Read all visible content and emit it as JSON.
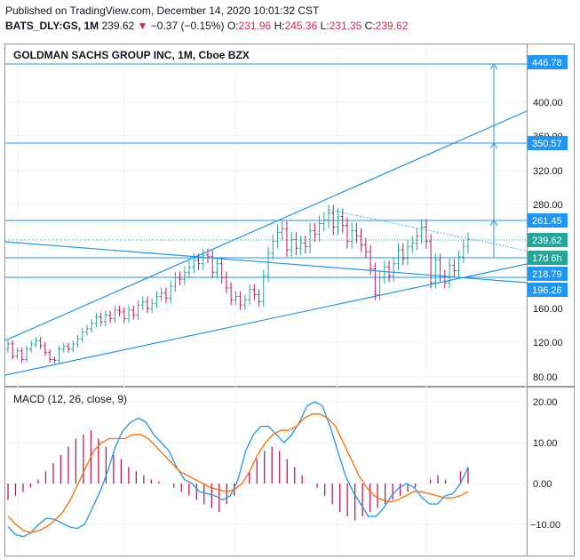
{
  "header": {
    "published": "Published on TradingView.com, December 14, 2020 10:01:32 CST",
    "symbol": "BATS_DLY:GS, 1M",
    "last": "239.62",
    "change": "−0.37 (−0.15%)",
    "o_label": "O:",
    "o": "231.96",
    "h_label": "H:",
    "h": "245.36",
    "l_label": "L:",
    "l": "231.35",
    "c_label": "C:",
    "c": "239.62"
  },
  "price_pane": {
    "title": "GOLDMAN SACHS GROUP INC, 1M, Cboe BZX",
    "axis_ticks": [
      "400.00",
      "360.00",
      "320.00",
      "280.00",
      "160.00",
      "120.00",
      "80.00"
    ],
    "tags": {
      "target_high": "446.78",
      "target_mid": "350.57",
      "resistance": "261.45",
      "last_price": "239.62",
      "countdown": "17d 6h",
      "support_1": "218.79",
      "support_2": "196.26"
    }
  },
  "macd_pane": {
    "title": "MACD (12, 26, close, 9)",
    "axis_ticks": [
      "20.00",
      "10.00",
      "0.00",
      "−10.00"
    ]
  },
  "colors": {
    "up": "#26a69a",
    "down": "#c2185b",
    "line": "#2196f3",
    "macd_line": "#2196f3",
    "signal_line": "#ff6d00",
    "histogram": "#c2185b"
  },
  "chart_data": [
    {
      "type": "candlestick",
      "title": "GOLDMAN SACHS GROUP INC, 1M, Cboe BZX",
      "ylim": [
        75,
        470
      ],
      "closes": [
        118,
        104,
        110,
        100,
        112,
        118,
        122,
        116,
        108,
        100,
        99,
        112,
        115,
        112,
        118,
        124,
        132,
        136,
        142,
        150,
        144,
        152,
        148,
        158,
        156,
        148,
        158,
        152,
        164,
        168,
        160,
        166,
        174,
        178,
        172,
        186,
        196,
        194,
        202,
        208,
        216,
        212,
        222,
        220,
        202,
        212,
        196,
        184,
        170,
        174,
        164,
        170,
        182,
        176,
        168,
        198,
        224,
        238,
        248,
        252,
        228,
        240,
        230,
        236,
        232,
        250,
        246,
        258,
        262,
        270,
        254,
        266,
        256,
        238,
        250,
        244,
        234,
        226,
        206,
        176,
        196,
        208,
        198,
        212,
        228,
        218,
        232,
        236,
        244,
        254,
        238,
        190,
        216,
        198,
        190,
        210,
        204,
        220,
        232,
        240
      ],
      "annotations": {
        "target_high": 446.78,
        "target_mid": 350.57,
        "resistance": 261.45,
        "last_price": 239.62,
        "support_1": 218.79,
        "support_2": 196.26
      }
    },
    {
      "type": "line",
      "title": "MACD (12, 26, close, 9)",
      "ylim": [
        -14,
        24
      ],
      "series": [
        {
          "values": [
            -10.5,
            -12.5,
            -13,
            -12,
            -10,
            -8.5,
            -8.7,
            -9.6,
            -10.6,
            -11,
            -10,
            -6,
            -2,
            3,
            9,
            13,
            15,
            16,
            15,
            12,
            10,
            8,
            4,
            1,
            0,
            -2,
            -2.5,
            -3,
            -4,
            -3,
            1,
            8,
            12,
            14,
            14,
            12,
            10,
            12,
            15,
            19,
            20,
            19,
            14,
            8,
            2,
            -2,
            -5,
            -8,
            -8,
            -6,
            -3,
            -1,
            0,
            -1,
            -3.5,
            -5,
            -5,
            -3,
            -2.5,
            0,
            4
          ]
        },
        {
          "values": [
            -8,
            -10,
            -11.5,
            -12,
            -11.5,
            -10.5,
            -9,
            -7,
            -4,
            0,
            4,
            8,
            10,
            11,
            11,
            11,
            12,
            12,
            11,
            9,
            7,
            5,
            3,
            2,
            1,
            0,
            -1,
            -1.5,
            -2,
            -1.5,
            0,
            3,
            7,
            10,
            12,
            13,
            13,
            14,
            16,
            17,
            17,
            16,
            14,
            10,
            6,
            2,
            -1,
            -3,
            -4,
            -4.5,
            -4,
            -3,
            -2,
            -2,
            -2.5,
            -3,
            -3.5,
            -3.5,
            -3,
            -2
          ]
        }
      ],
      "histogram": [
        -4,
        -3,
        -2,
        -1,
        1,
        3,
        5,
        7,
        9,
        11,
        12,
        13,
        11,
        9,
        7,
        6,
        4,
        3,
        2,
        1,
        0.5,
        0,
        -1,
        -2,
        -3,
        -4,
        -5,
        -6,
        -7,
        -5,
        -3,
        0,
        3,
        6,
        8,
        9,
        8,
        6,
        4,
        2,
        0,
        -1,
        -3,
        -5,
        -7,
        -8,
        -9,
        -8,
        -7,
        -6,
        -5,
        -4,
        -3,
        -2,
        -1,
        0,
        1,
        2,
        1,
        0,
        3,
        4
      ]
    }
  ]
}
